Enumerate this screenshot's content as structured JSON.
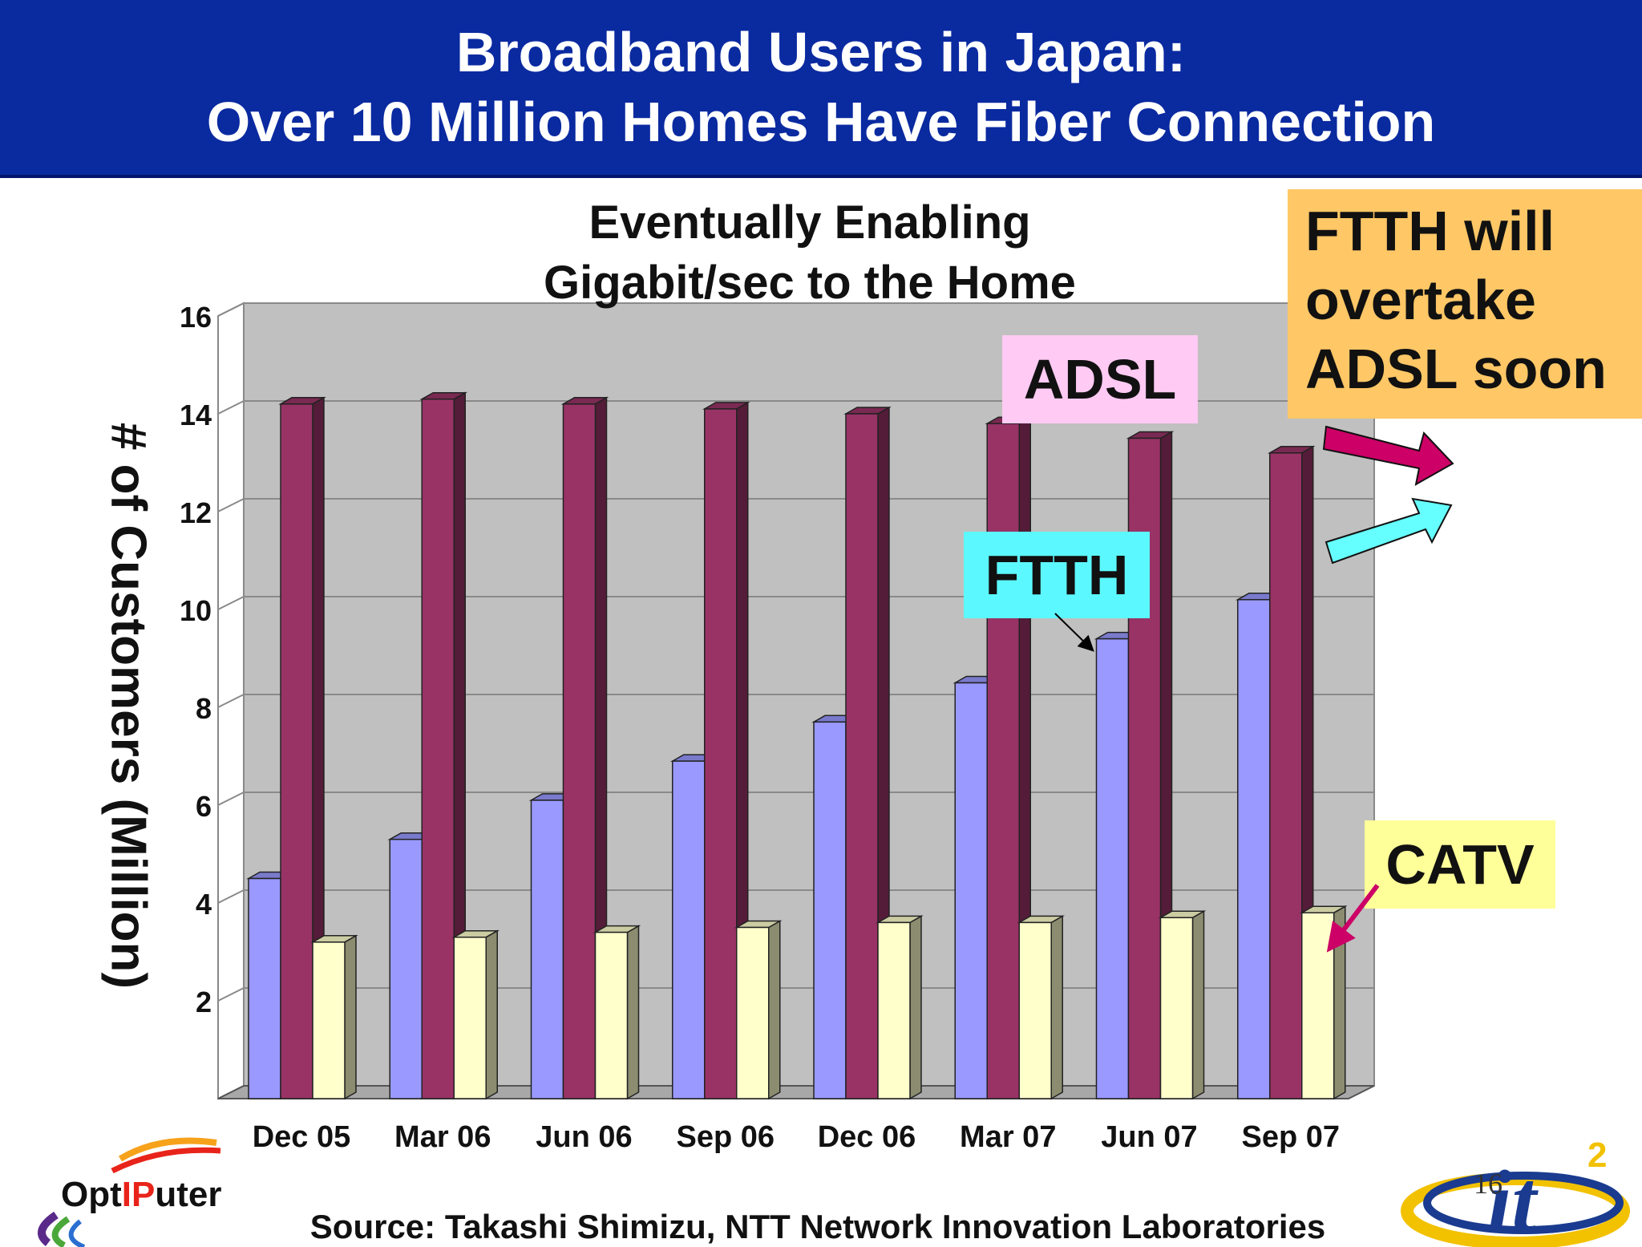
{
  "header": {
    "title_line1": "Broadband Users in Japan:",
    "title_line2": "Over 10 Million Homes Have Fiber Connection"
  },
  "subtitle": {
    "line1": "Eventually Enabling",
    "line2": "Gigabit/sec to the Home"
  },
  "chart_data": {
    "type": "bar",
    "ylabel": "# of Customers (Million)",
    "ylim": [
      0,
      16
    ],
    "y_ticks": [
      "2",
      "4",
      "6",
      "8",
      "10",
      "12",
      "14",
      "16"
    ],
    "grid": true,
    "style": "3d-clustered",
    "categories": [
      "Dec 05",
      "Mar 06",
      "Jun 06",
      "Sep 06",
      "Dec 06",
      "Mar 07",
      "Jun 07",
      "Sep 07"
    ],
    "series": [
      {
        "name": "FTTH",
        "color": "#9999ff",
        "values": [
          4.5,
          5.3,
          6.1,
          6.9,
          7.7,
          8.5,
          9.4,
          10.2
        ]
      },
      {
        "name": "ADSL",
        "color": "#993366",
        "values": [
          14.2,
          14.3,
          14.2,
          14.1,
          14.0,
          13.8,
          13.5,
          13.2
        ]
      },
      {
        "name": "CATV",
        "color": "#ffffcc",
        "values": [
          3.2,
          3.3,
          3.4,
          3.5,
          3.6,
          3.6,
          3.7,
          3.8
        ]
      }
    ]
  },
  "callouts": {
    "adsl": "ADSL",
    "ftth": "FTTH",
    "catv": "CATV"
  },
  "note": {
    "line1": "FTTH will",
    "line2": "overtake",
    "line3": "ADSL soon"
  },
  "footer": {
    "source": "Source: Takashi Shimizu, NTT Network Innovation Laboratories",
    "page_number": "16",
    "optiputer_logo": {
      "before": "Opt",
      "highlight": "IP",
      "after": "uter"
    },
    "it2_logo": {
      "text": "it",
      "superscript": "2"
    }
  },
  "colors": {
    "title_bar": "#0a2aa0",
    "ftth": "#9999ff",
    "adsl": "#993366",
    "catv": "#ffffcc",
    "ftth_label_bg": "#5cf8ff",
    "adsl_label_bg": "#ffcaf3",
    "catv_label_bg": "#ffff99",
    "note_bg": "#ffc766",
    "adsl_arrow": "#cc0066",
    "ftth_arrow": "#66ffff"
  }
}
